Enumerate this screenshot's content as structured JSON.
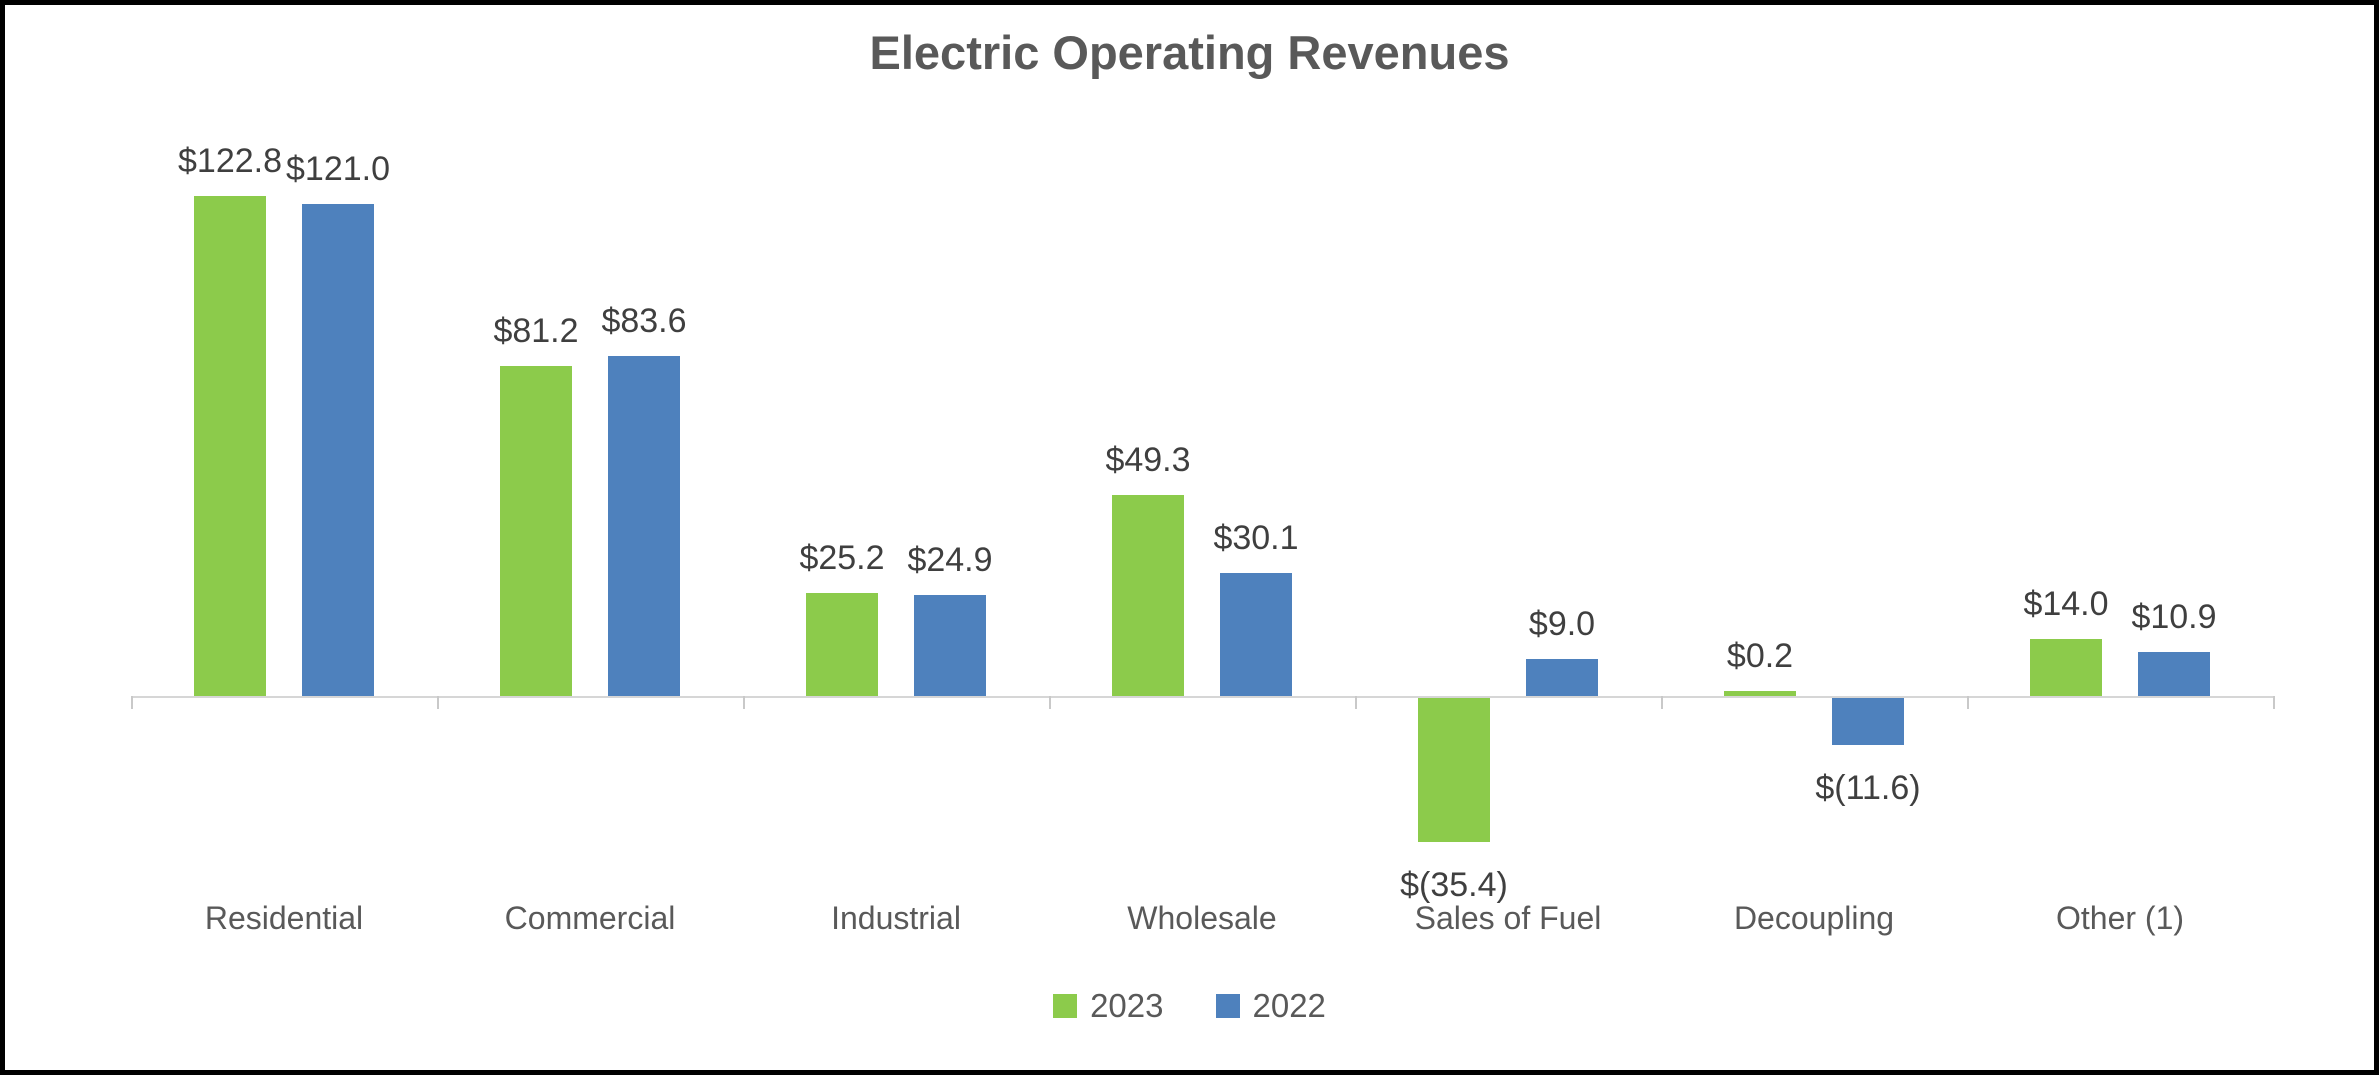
{
  "title": "Electric Operating Revenues",
  "chart_data": {
    "type": "bar",
    "title": "Electric Operating Revenues",
    "categories": [
      "Residential",
      "Commercial",
      "Industrial",
      "Wholesale",
      "Sales of Fuel",
      "Decoupling",
      "Other (1)"
    ],
    "series": [
      {
        "name": "2023",
        "color": "#8ccb4b",
        "values": [
          122.8,
          81.2,
          25.2,
          49.3,
          -35.4,
          0.2,
          14.0
        ],
        "labels": [
          "$122.8",
          "$81.2",
          "$25.2",
          "$49.3",
          "$(35.4)",
          "$0.2",
          "$14.0"
        ]
      },
      {
        "name": "2022",
        "color": "#4e81bd",
        "values": [
          121.0,
          83.6,
          24.9,
          30.1,
          9.0,
          -11.6,
          10.9
        ],
        "labels": [
          "$121.0",
          "$83.6",
          "$24.9",
          "$30.1",
          "$9.0",
          "$(11.6)",
          "$10.9"
        ]
      }
    ],
    "ylim": [
      -40,
      135
    ],
    "grid": false,
    "legend_position": "bottom",
    "value_labels_shown": true,
    "y_axis_shown": false
  },
  "colors": {
    "series_2023": "#8ccb4b",
    "series_2022": "#4e81bd",
    "title_text": "#595959",
    "value_label_text": "#3f3f3f",
    "category_label_text": "#595959",
    "axis_line": "#d6d6d6",
    "tick_mark": "#c9c9c9",
    "frame_border": "#000000",
    "background": "#ffffff"
  }
}
